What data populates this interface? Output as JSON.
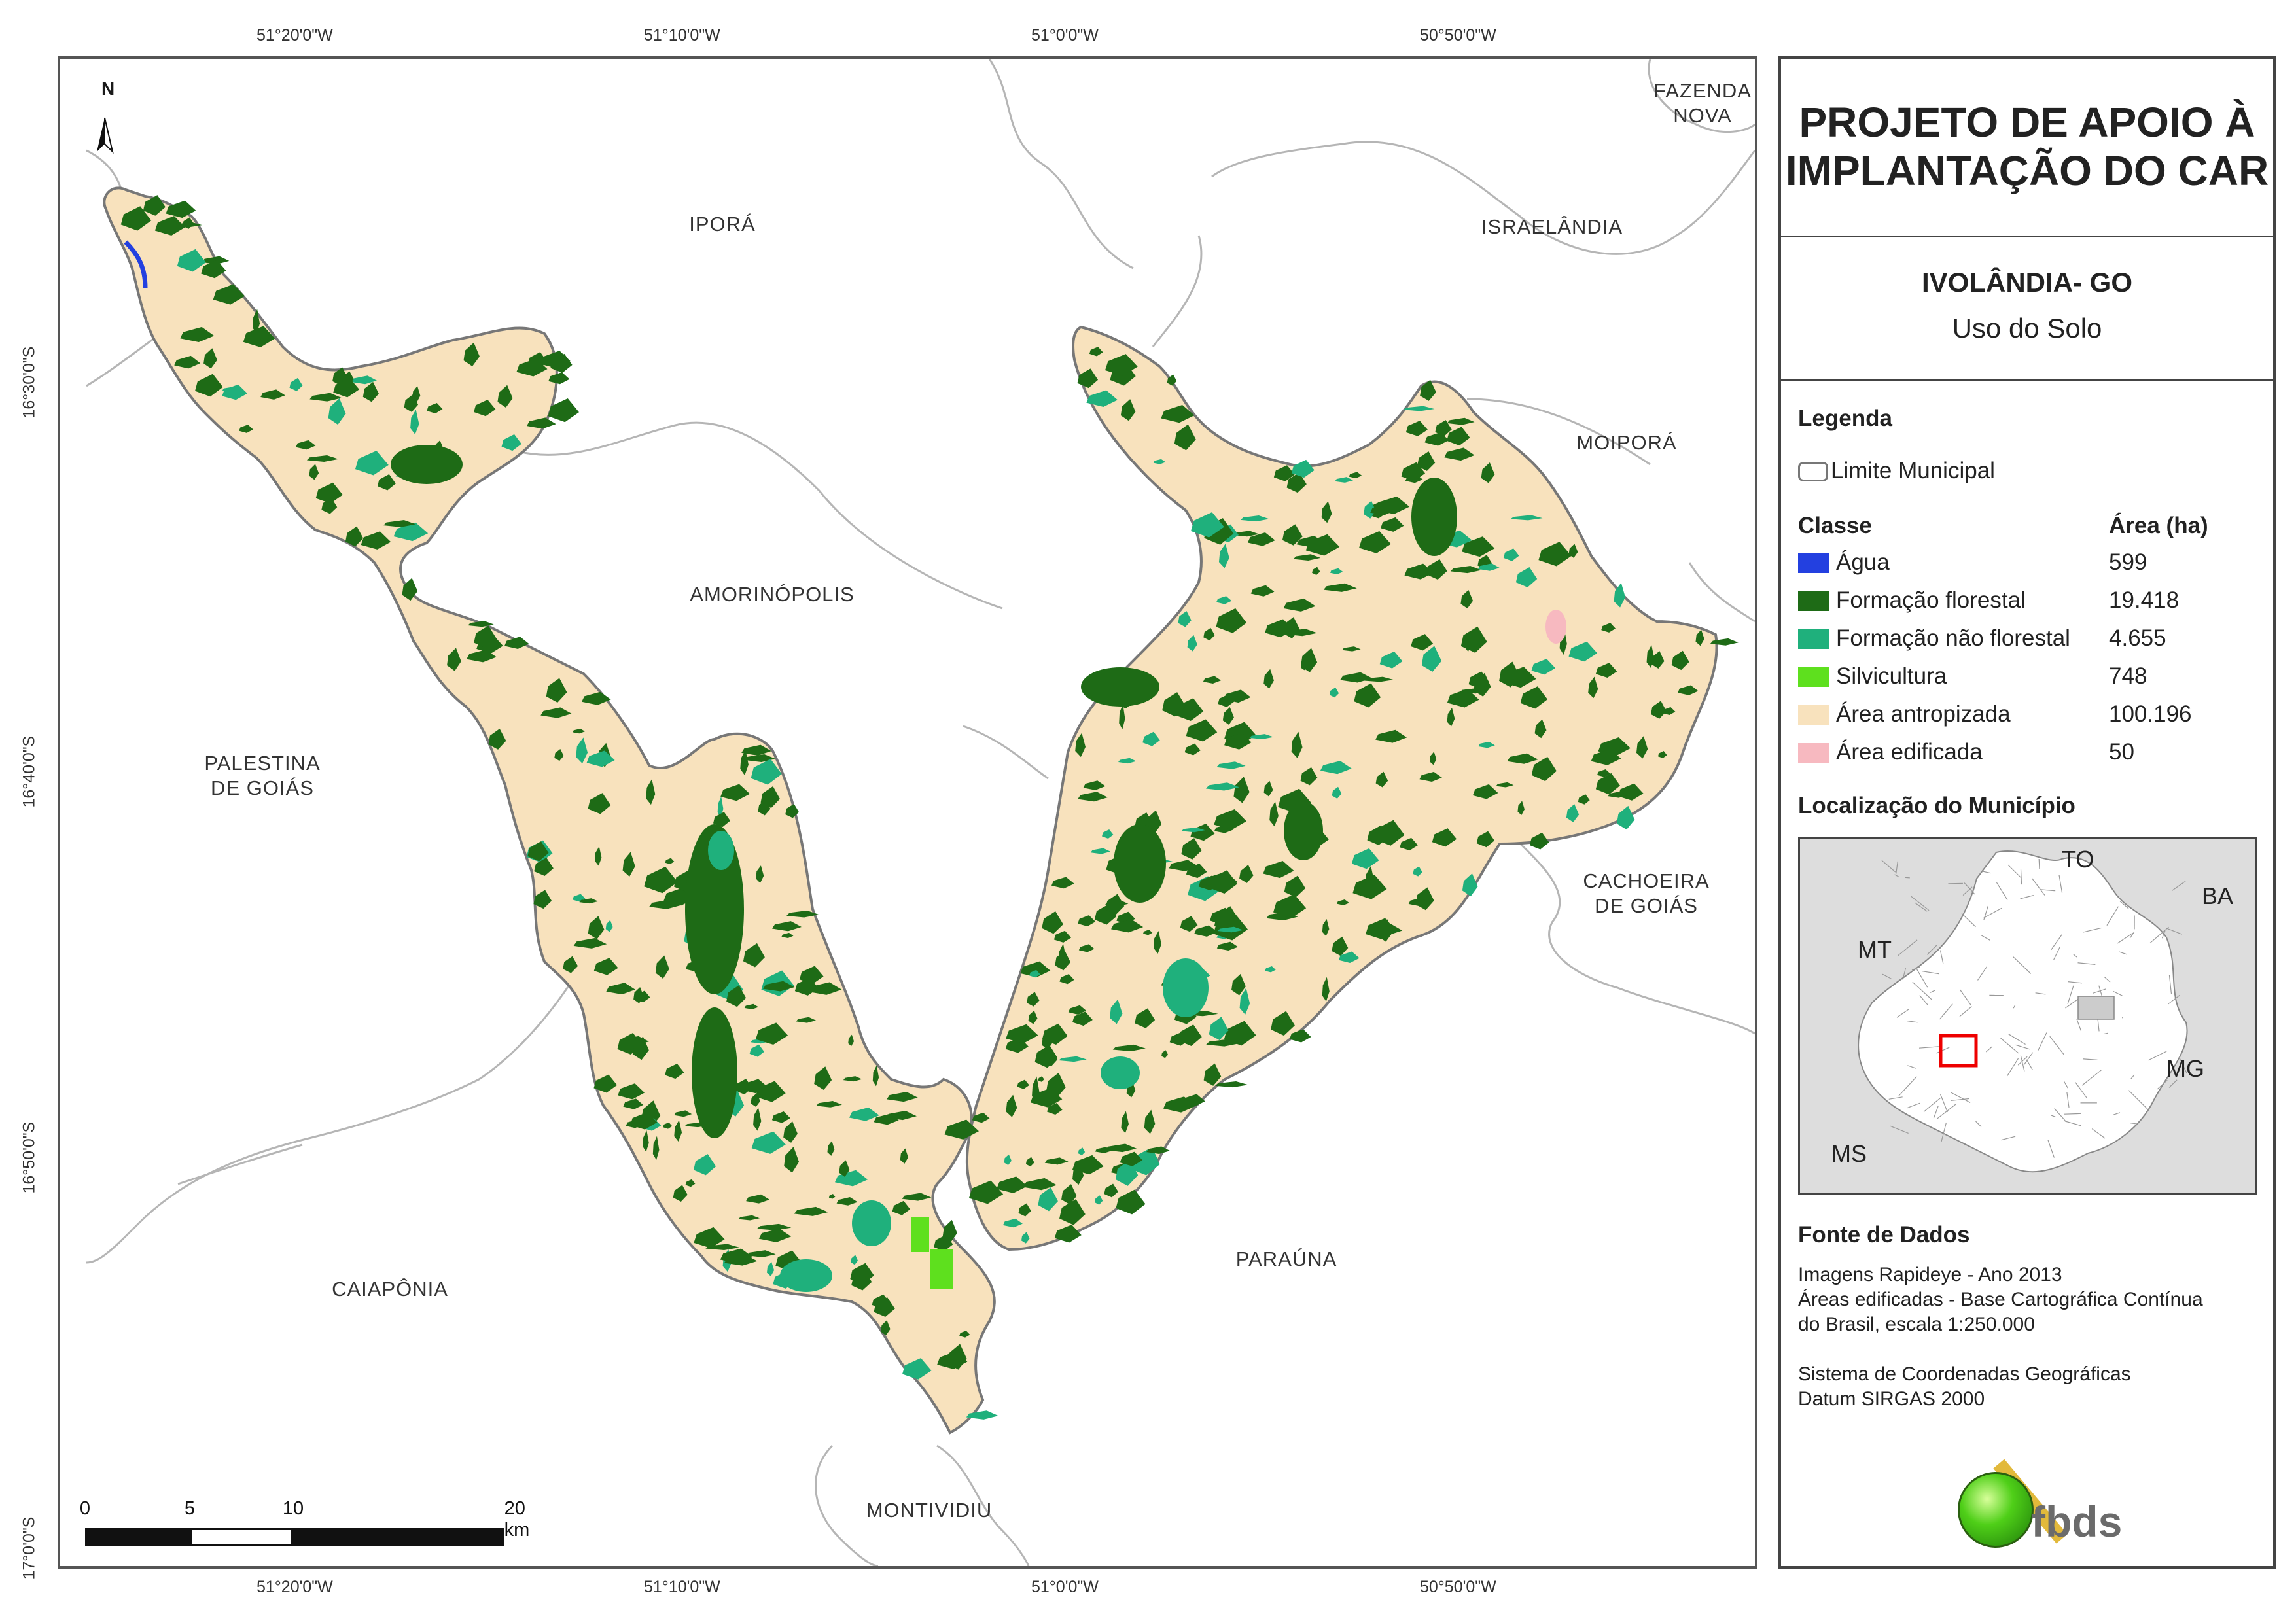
{
  "map": {
    "north_label": "N",
    "coords_top": [
      "51°20'0\"W",
      "51°10'0\"W",
      "51°0'0\"W",
      "50°50'0\"W"
    ],
    "coords_bottom": [
      "51°20'0\"W",
      "51°10'0\"W",
      "51°0'0\"W",
      "50°50'0\"W"
    ],
    "coords_left": [
      "16°30'0\"S",
      "16°40'0\"S",
      "16°50'0\"S",
      "17°0'0\"S"
    ],
    "municipalities": [
      {
        "name": "FAZENDA\nNOVA"
      },
      {
        "name": "IPORÁ"
      },
      {
        "name": "ISRAELÂNDIA"
      },
      {
        "name": "MOIPORÁ"
      },
      {
        "name": "AMORINÓPOLIS"
      },
      {
        "name": "PALESTINA\nDE GOIÁS"
      },
      {
        "name": "CACHOEIRA\nDE GOIÁS"
      },
      {
        "name": "CAIAPÔNIA"
      },
      {
        "name": "PARAÚNA"
      },
      {
        "name": "MONTIVIDIU"
      }
    ],
    "scale_labels": [
      "0",
      "5",
      "10",
      "20 km"
    ]
  },
  "panel": {
    "title": "PROJETO DE APOIO À\nIMPLANTAÇÃO DO CAR",
    "municipality": "IVOLÂNDIA- GO",
    "theme": "Uso do Solo",
    "legend_heading": "Legenda",
    "boundary_label": "Limite Municipal",
    "class_heading": "Classe",
    "area_heading": "Área (ha)",
    "classes": [
      {
        "label": "Água",
        "area": "599",
        "color": "#2340e0"
      },
      {
        "label": "Formação florestal",
        "area": "19.418",
        "color": "#1e6b16"
      },
      {
        "label": "Formação não florestal",
        "area": "4.655",
        "color": "#1fb07c"
      },
      {
        "label": "Silvicultura",
        "area": "748",
        "color": "#5ee01e"
      },
      {
        "label": "Área antropizada",
        "area": "100.196",
        "color": "#f8e2bd"
      },
      {
        "label": "Área edificada",
        "area": "50",
        "color": "#f7b9c0"
      }
    ],
    "location_heading": "Localização do Município",
    "location_states": [
      "TO",
      "BA",
      "MT",
      "MG",
      "MS"
    ],
    "source_heading": "Fonte de Dados",
    "source_lines": [
      "Imagens Rapideye - Ano 2013",
      "Áreas edificadas - Base Cartográfica Contínua",
      "do Brasil, escala 1:250.000",
      "",
      "Sistema de Coordenadas Geográficas",
      "Datum SIRGAS 2000"
    ],
    "logo_text": "fbds"
  }
}
